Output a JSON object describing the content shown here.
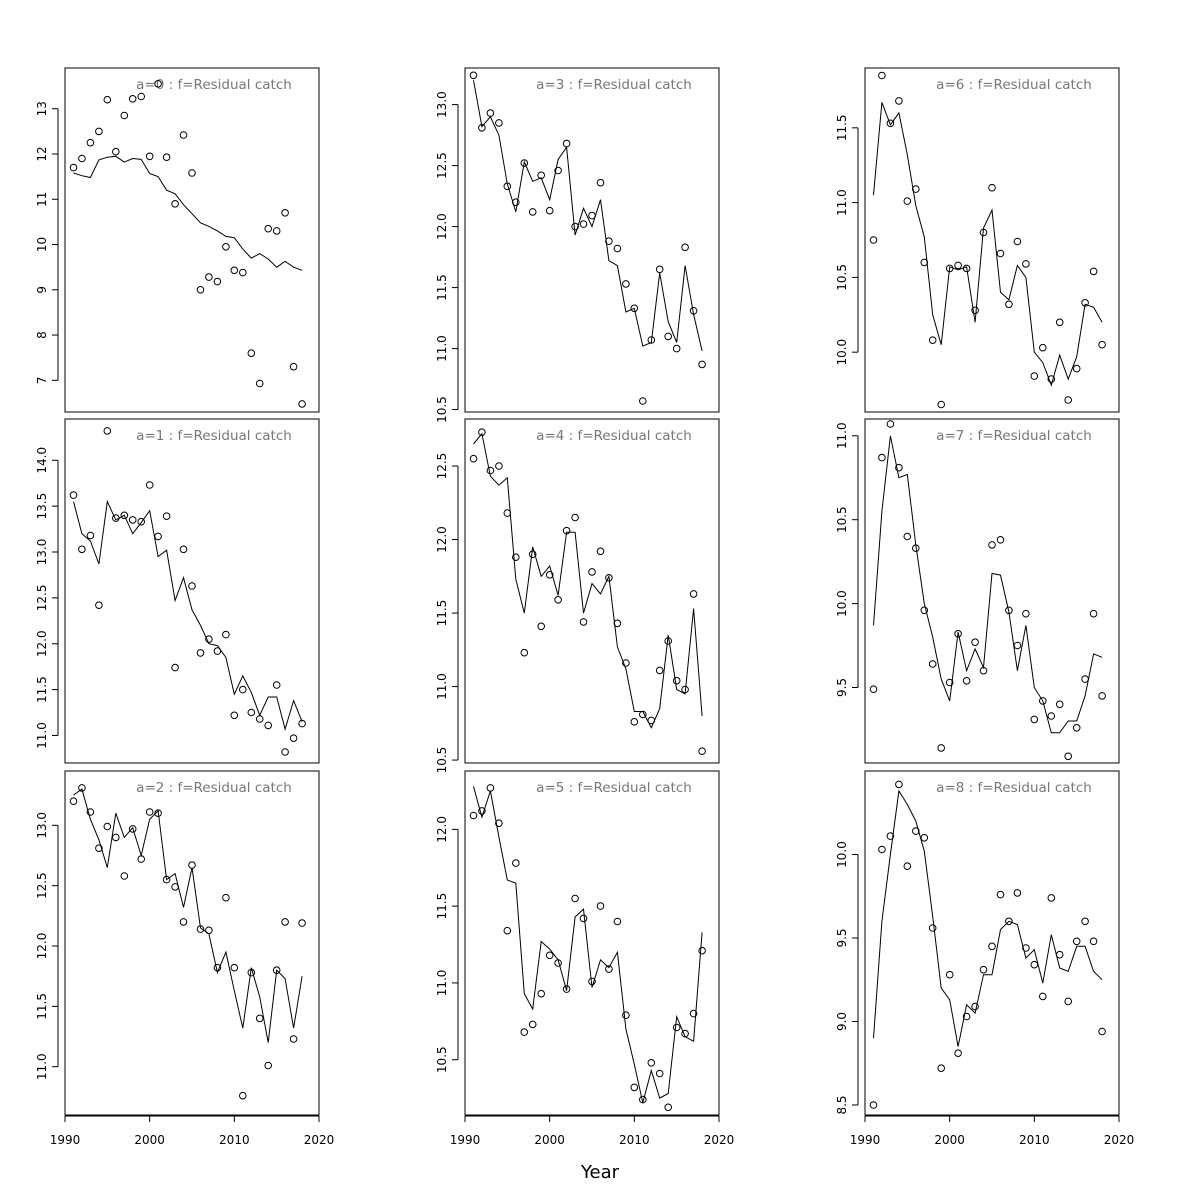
{
  "figure": {
    "xlabel": "Year"
  },
  "chart_data": [
    {
      "type": "scatter",
      "title": "a=0  :  f=Residual catch",
      "xlim": [
        1990,
        2020
      ],
      "ylim": [
        6.3,
        13.9
      ],
      "xticks": [
        1990,
        2000,
        2010,
        2020
      ],
      "yticks": [
        7,
        8,
        9,
        10,
        11,
        12,
        13
      ],
      "x": [
        1991,
        1992,
        1993,
        1994,
        1995,
        1996,
        1997,
        1998,
        1999,
        2000,
        2001,
        2002,
        2003,
        2004,
        2005,
        2006,
        2007,
        2008,
        2009,
        2010,
        2011,
        2012,
        2013,
        2014,
        2015,
        2016,
        2017,
        2018
      ],
      "observed": [
        11.7,
        11.9,
        12.25,
        12.5,
        13.2,
        12.05,
        12.85,
        13.22,
        13.27,
        11.95,
        13.55,
        11.93,
        10.9,
        12.42,
        11.58,
        9.0,
        9.28,
        9.18,
        9.95,
        9.43,
        9.38,
        7.6,
        6.93,
        10.35,
        10.3,
        10.7,
        7.3,
        6.48
      ],
      "fitted": [
        11.58,
        11.52,
        11.48,
        11.87,
        11.93,
        11.95,
        11.82,
        11.9,
        11.88,
        11.57,
        11.5,
        11.2,
        11.12,
        10.88,
        10.68,
        10.48,
        10.4,
        10.3,
        10.18,
        10.15,
        9.9,
        9.7,
        9.8,
        9.68,
        9.5,
        9.63,
        9.5,
        9.43
      ]
    },
    {
      "type": "scatter",
      "title": "a=1  :  f=Residual catch",
      "xlim": [
        1990,
        2020
      ],
      "ylim": [
        10.7,
        14.45
      ],
      "xticks": [
        1990,
        2000,
        2010,
        2020
      ],
      "yticks": [
        11.0,
        11.5,
        12.0,
        12.5,
        13.0,
        13.5,
        14.0
      ],
      "x": [
        1991,
        1992,
        1993,
        1994,
        1995,
        1996,
        1997,
        1998,
        1999,
        2000,
        2001,
        2002,
        2003,
        2004,
        2005,
        2006,
        2007,
        2008,
        2009,
        2010,
        2011,
        2012,
        2013,
        2014,
        2015,
        2016,
        2017,
        2018
      ],
      "observed": [
        13.62,
        13.03,
        13.18,
        12.42,
        14.32,
        13.37,
        13.4,
        13.35,
        13.33,
        13.73,
        13.17,
        13.39,
        11.74,
        13.03,
        12.63,
        11.9,
        12.05,
        11.92,
        12.1,
        11.22,
        11.5,
        11.25,
        11.18,
        11.11,
        11.55,
        10.82,
        10.97,
        11.13
      ],
      "fitted": [
        13.55,
        13.2,
        13.12,
        12.87,
        13.55,
        13.35,
        13.4,
        13.2,
        13.32,
        13.45,
        12.95,
        13.02,
        12.47,
        12.72,
        12.37,
        12.2,
        12.0,
        11.98,
        11.85,
        11.45,
        11.65,
        11.47,
        11.22,
        11.42,
        11.42,
        11.07,
        11.38,
        11.15
      ]
    },
    {
      "type": "scatter",
      "title": "a=2  :  f=Residual catch",
      "xlim": [
        1990,
        2020
      ],
      "ylim": [
        10.6,
        13.45
      ],
      "xticks": [
        1990,
        2000,
        2010,
        2020
      ],
      "yticks": [
        11.0,
        11.5,
        12.0,
        12.5,
        13.0
      ],
      "x": [
        1991,
        1992,
        1993,
        1994,
        1995,
        1996,
        1997,
        1998,
        1999,
        2000,
        2001,
        2002,
        2003,
        2004,
        2005,
        2006,
        2007,
        2008,
        2009,
        2010,
        2011,
        2012,
        2013,
        2014,
        2015,
        2016,
        2017,
        2018
      ],
      "observed": [
        13.2,
        13.31,
        13.11,
        12.81,
        12.99,
        12.9,
        12.58,
        12.97,
        12.72,
        13.11,
        13.1,
        12.55,
        12.49,
        12.2,
        12.67,
        12.14,
        12.13,
        11.82,
        12.4,
        11.82,
        10.76,
        11.78,
        11.4,
        11.01,
        11.8,
        12.2,
        11.23,
        12.19
      ],
      "fitted": [
        13.25,
        13.3,
        13.05,
        12.88,
        12.65,
        13.1,
        12.9,
        12.98,
        12.75,
        13.05,
        13.12,
        12.55,
        12.6,
        12.32,
        12.65,
        12.15,
        12.1,
        11.78,
        11.95,
        11.63,
        11.32,
        11.82,
        11.58,
        11.2,
        11.8,
        11.73,
        11.32,
        11.75
      ]
    },
    {
      "type": "scatter",
      "title": "a=3  :  f=Residual catch",
      "xlim": [
        1990,
        2020
      ],
      "ylim": [
        10.48,
        13.3
      ],
      "xticks": [
        1990,
        2000,
        2010,
        2020
      ],
      "yticks": [
        10.5,
        11.0,
        11.5,
        12.0,
        12.5,
        13.0
      ],
      "x": [
        1991,
        1992,
        1993,
        1994,
        1995,
        1996,
        1997,
        1998,
        1999,
        2000,
        2001,
        2002,
        2003,
        2004,
        2005,
        2006,
        2007,
        2008,
        2009,
        2010,
        2011,
        2012,
        2013,
        2014,
        2015,
        2016,
        2017,
        2018
      ],
      "observed": [
        13.24,
        12.81,
        12.93,
        12.85,
        12.33,
        12.2,
        12.52,
        12.12,
        12.42,
        12.13,
        12.46,
        12.68,
        12.0,
        12.02,
        12.09,
        12.36,
        11.88,
        11.82,
        11.53,
        11.33,
        10.57,
        11.07,
        11.65,
        11.1,
        11.0,
        11.83,
        11.31,
        10.87
      ],
      "fitted": [
        13.2,
        12.82,
        12.9,
        12.75,
        12.35,
        12.12,
        12.53,
        12.37,
        12.4,
        12.22,
        12.55,
        12.65,
        11.93,
        12.15,
        12.0,
        12.22,
        11.72,
        11.68,
        11.3,
        11.33,
        11.02,
        11.05,
        11.62,
        11.22,
        11.05,
        11.68,
        11.28,
        10.98
      ]
    },
    {
      "type": "scatter",
      "title": "a=4  :  f=Residual catch",
      "xlim": [
        1990,
        2020
      ],
      "ylim": [
        10.48,
        12.82
      ],
      "xticks": [
        1990,
        2000,
        2010,
        2020
      ],
      "yticks": [
        10.5,
        11.0,
        11.5,
        12.0,
        12.5
      ],
      "x": [
        1991,
        1992,
        1993,
        1994,
        1995,
        1996,
        1997,
        1998,
        1999,
        2000,
        2001,
        2002,
        2003,
        2004,
        2005,
        2006,
        2007,
        2008,
        2009,
        2010,
        2011,
        2012,
        2013,
        2014,
        2015,
        2016,
        2017,
        2018
      ],
      "observed": [
        12.55,
        12.73,
        12.47,
        12.5,
        12.18,
        11.88,
        11.23,
        11.9,
        11.41,
        11.76,
        11.59,
        12.06,
        12.15,
        11.44,
        11.78,
        11.92,
        11.74,
        11.43,
        11.16,
        10.76,
        10.81,
        10.77,
        11.11,
        11.31,
        11.04,
        10.98,
        11.63,
        10.56
      ],
      "fitted": [
        12.65,
        12.72,
        12.43,
        12.37,
        12.42,
        11.73,
        11.5,
        11.95,
        11.75,
        11.82,
        11.62,
        12.05,
        12.05,
        11.5,
        11.7,
        11.63,
        11.75,
        11.27,
        11.12,
        10.83,
        10.83,
        10.72,
        10.85,
        11.35,
        10.98,
        10.95,
        11.53,
        10.8
      ]
    },
    {
      "type": "scatter",
      "title": "a=5  :  f=Residual catch",
      "xlim": [
        1990,
        2020
      ],
      "ylim": [
        10.14,
        12.38
      ],
      "xticks": [
        1990,
        2000,
        2010,
        2020
      ],
      "yticks": [
        10.5,
        11.0,
        11.5,
        12.0
      ],
      "x": [
        1991,
        1992,
        1993,
        1994,
        1995,
        1996,
        1997,
        1998,
        1999,
        2000,
        2001,
        2002,
        2003,
        2004,
        2005,
        2006,
        2007,
        2008,
        2009,
        2010,
        2011,
        2012,
        2013,
        2014,
        2015,
        2016,
        2017,
        2018
      ],
      "observed": [
        12.09,
        12.12,
        12.27,
        12.04,
        11.34,
        11.78,
        10.68,
        10.73,
        10.93,
        11.18,
        11.13,
        10.96,
        11.55,
        11.42,
        11.01,
        11.5,
        11.09,
        11.4,
        10.79,
        10.32,
        10.24,
        10.48,
        10.41,
        10.19,
        10.71,
        10.67,
        10.8,
        11.21
      ],
      "fitted": [
        12.28,
        12.08,
        12.25,
        11.95,
        11.67,
        11.65,
        10.93,
        10.83,
        11.27,
        11.22,
        11.15,
        10.95,
        11.43,
        11.48,
        10.97,
        11.15,
        11.1,
        11.2,
        10.7,
        10.47,
        10.22,
        10.43,
        10.25,
        10.28,
        10.78,
        10.65,
        10.62,
        11.33
      ]
    },
    {
      "type": "scatter",
      "title": "a=6  :  f=Residual catch",
      "xlim": [
        1990,
        2020
      ],
      "ylim": [
        9.6,
        11.9
      ],
      "xticks": [
        1990,
        2000,
        2010,
        2020
      ],
      "yticks": [
        10.0,
        10.5,
        11.0,
        11.5
      ],
      "x": [
        1991,
        1992,
        1993,
        1994,
        1995,
        1996,
        1997,
        1998,
        1999,
        2000,
        2001,
        2002,
        2003,
        2004,
        2005,
        2006,
        2007,
        2008,
        2009,
        2010,
        2011,
        2012,
        2013,
        2014,
        2015,
        2016,
        2017,
        2018
      ],
      "observed": [
        10.75,
        11.85,
        11.53,
        11.68,
        11.01,
        11.09,
        10.6,
        10.08,
        9.65,
        10.56,
        10.58,
        10.56,
        10.28,
        10.8,
        11.1,
        10.66,
        10.32,
        10.74,
        10.59,
        9.84,
        10.03,
        9.82,
        10.2,
        9.68,
        9.89,
        10.33,
        10.54,
        10.05
      ],
      "fitted": [
        11.05,
        11.67,
        11.52,
        11.6,
        11.32,
        10.98,
        10.77,
        10.25,
        10.05,
        10.57,
        10.55,
        10.57,
        10.2,
        10.83,
        10.95,
        10.4,
        10.35,
        10.58,
        10.5,
        10.0,
        9.93,
        9.78,
        9.98,
        9.82,
        9.97,
        10.32,
        10.3,
        10.2
      ]
    },
    {
      "type": "scatter",
      "title": "a=7  :  f=Residual catch",
      "xlim": [
        1990,
        2020
      ],
      "ylim": [
        9.05,
        11.1
      ],
      "xticks": [
        1990,
        2000,
        2010,
        2020
      ],
      "yticks": [
        9.5,
        10.0,
        10.5,
        11.0
      ],
      "x": [
        1991,
        1992,
        1993,
        1994,
        1995,
        1996,
        1997,
        1998,
        1999,
        2000,
        2001,
        2002,
        2003,
        2004,
        2005,
        2006,
        2007,
        2008,
        2009,
        2010,
        2011,
        2012,
        2013,
        2014,
        2015,
        2016,
        2017,
        2018
      ],
      "observed": [
        9.49,
        10.87,
        11.07,
        10.81,
        10.4,
        10.33,
        9.96,
        9.64,
        9.14,
        9.53,
        9.82,
        9.54,
        9.77,
        9.6,
        10.35,
        10.38,
        9.96,
        9.75,
        9.94,
        9.31,
        9.42,
        9.33,
        9.4,
        9.09,
        9.26,
        9.55,
        9.94,
        9.45
      ],
      "fitted": [
        9.87,
        10.55,
        11.0,
        10.75,
        10.77,
        10.35,
        10.0,
        9.8,
        9.55,
        9.42,
        9.83,
        9.6,
        9.73,
        9.62,
        10.18,
        10.17,
        9.95,
        9.6,
        9.87,
        9.5,
        9.42,
        9.23,
        9.23,
        9.3,
        9.3,
        9.45,
        9.7,
        9.68
      ]
    },
    {
      "type": "scatter",
      "title": "a=8  :  f=Residual catch",
      "xlim": [
        1990,
        2020
      ],
      "ylim": [
        8.44,
        10.5
      ],
      "xticks": [
        1990,
        2000,
        2010,
        2020
      ],
      "yticks": [
        8.5,
        9.0,
        9.5,
        10.0
      ],
      "x": [
        1991,
        1992,
        1993,
        1994,
        1995,
        1996,
        1997,
        1998,
        1999,
        2000,
        2001,
        2002,
        2003,
        2004,
        2005,
        2006,
        2007,
        2008,
        2009,
        2010,
        2011,
        2012,
        2013,
        2014,
        2015,
        2016,
        2017,
        2018
      ],
      "observed": [
        8.5,
        10.03,
        10.11,
        10.42,
        9.93,
        10.14,
        10.1,
        9.56,
        8.72,
        9.28,
        8.81,
        9.03,
        9.09,
        9.31,
        9.45,
        9.76,
        9.6,
        9.77,
        9.44,
        9.34,
        9.15,
        9.74,
        9.4,
        9.12,
        9.48,
        9.6,
        9.48,
        8.94
      ],
      "fitted": [
        8.9,
        9.6,
        10.0,
        10.38,
        10.3,
        10.2,
        10.02,
        9.63,
        9.2,
        9.13,
        8.85,
        9.1,
        9.05,
        9.28,
        9.28,
        9.55,
        9.6,
        9.58,
        9.38,
        9.43,
        9.23,
        9.52,
        9.32,
        9.3,
        9.45,
        9.45,
        9.3,
        9.25
      ]
    }
  ]
}
